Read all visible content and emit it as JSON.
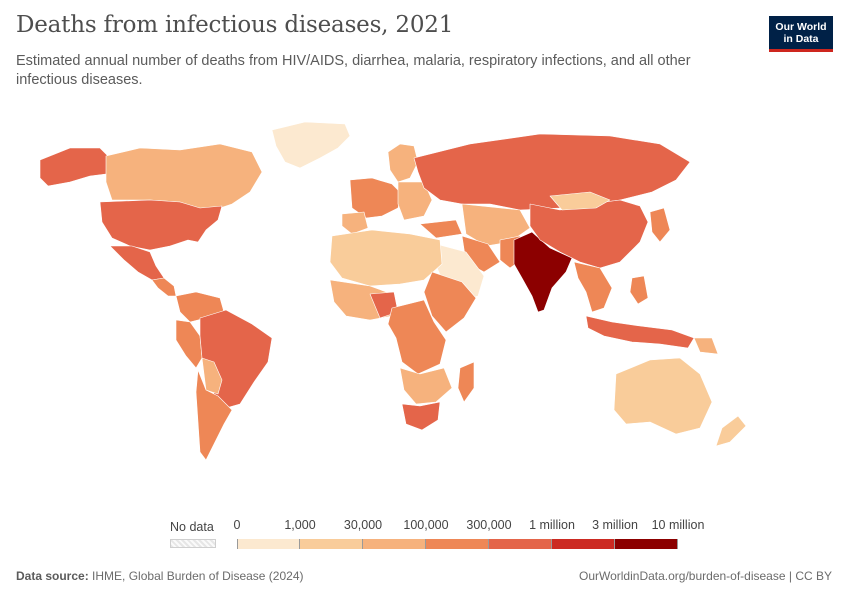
{
  "header": {
    "title": "Deaths from infectious diseases, 2021",
    "subtitle": "Estimated annual number of deaths from HIV/AIDS, diarrhea, malaria, respiratory infections, and all other infectious diseases."
  },
  "logo": {
    "line1": "Our World",
    "line2": "in Data",
    "bg": "#002147",
    "accent": "#ce261e"
  },
  "legend": {
    "nodata_label": "No data",
    "ticks": [
      "0",
      "1,000",
      "30,000",
      "100,000",
      "300,000",
      "1 million",
      "3 million",
      "10 million"
    ],
    "colors": [
      "#fce9d0",
      "#f9cc9a",
      "#f6b27d",
      "#ee8756",
      "#e4654a",
      "#cc2a22",
      "#8c0000"
    ]
  },
  "footer": {
    "source_label": "Data source:",
    "source_text": "IHME, Global Burden of Disease (2024)",
    "url": "OurWorldinData.org/burden-of-disease | CC BY"
  },
  "map_regions": [
    {
      "name": "India",
      "level": 6
    },
    {
      "name": "Russia",
      "level": 4
    },
    {
      "name": "United States",
      "level": 4
    },
    {
      "name": "Brazil",
      "level": 4
    },
    {
      "name": "China",
      "level": 4
    },
    {
      "name": "Indonesia",
      "level": 4
    },
    {
      "name": "Nigeria",
      "level": 4
    },
    {
      "name": "South Africa",
      "level": 4
    },
    {
      "name": "Mexico",
      "level": 4
    },
    {
      "name": "Ethiopia",
      "level": 4
    },
    {
      "name": "DR Congo",
      "level": 3
    },
    {
      "name": "Peru",
      "level": 3
    },
    {
      "name": "Argentina",
      "level": 3
    },
    {
      "name": "Canada",
      "level": 2
    },
    {
      "name": "Australia",
      "level": 1
    },
    {
      "name": "Greenland",
      "level": 0
    }
  ]
}
